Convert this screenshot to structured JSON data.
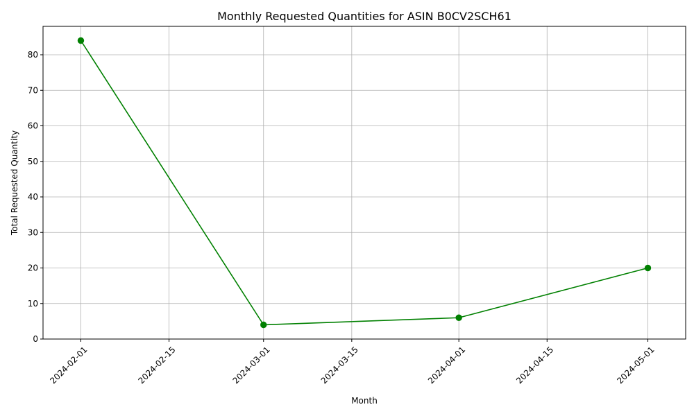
{
  "chart_data": {
    "type": "line",
    "title": "Monthly Requested Quantities for ASIN B0CV2SCH61",
    "xlabel": "Month",
    "ylabel": "Total Requested Quantity",
    "x_ticks": [
      "2024-02-01",
      "2024-02-15",
      "2024-03-01",
      "2024-03-15",
      "2024-04-01",
      "2024-04-15",
      "2024-05-01"
    ],
    "y_ticks": [
      0,
      10,
      20,
      30,
      40,
      50,
      60,
      70,
      80
    ],
    "xlim": [
      "2024-01-26",
      "2024-05-07"
    ],
    "ylim": [
      0,
      88
    ],
    "grid": true,
    "series": [
      {
        "color": "#008000",
        "marker": "circle",
        "points": [
          {
            "x": "2024-02-01",
            "y": 84
          },
          {
            "x": "2024-03-01",
            "y": 4
          },
          {
            "x": "2024-04-01",
            "y": 6
          },
          {
            "x": "2024-05-01",
            "y": 20
          }
        ]
      }
    ]
  }
}
